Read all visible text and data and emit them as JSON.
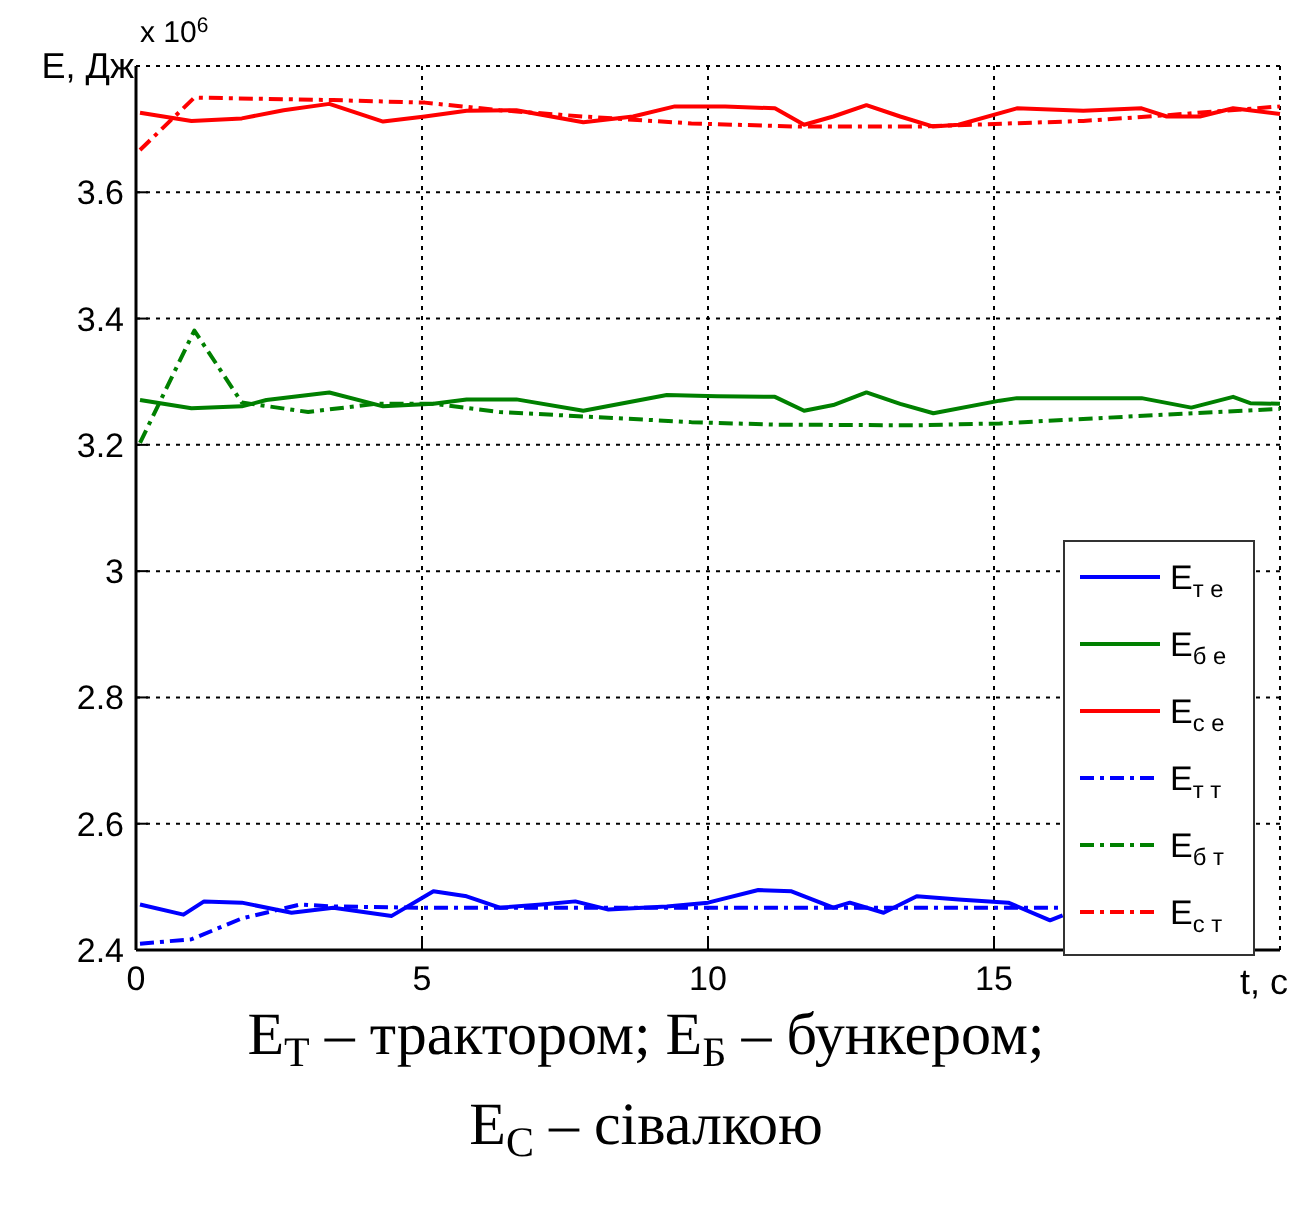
{
  "chart_data": {
    "type": "line",
    "xlabel": "t, c",
    "ylabel": "E, Дж",
    "annotations": [
      "x 10$^{6}$",
      "E$_{Т}$ – трактором;  E$_{Б}$ – бункером;",
      "E$_{С}$ – сівалкою"
    ],
    "xlim": [
      0,
      20
    ],
    "xticks": [
      0,
      5,
      10,
      15
    ],
    "ylim": [
      2.4,
      3.8
    ],
    "yticks": [
      2.4,
      2.6,
      2.8,
      3,
      3.2,
      3.4,
      3.6
    ],
    "grid": true,
    "legend": "right",
    "series": [
      {
        "name": "E$_{т е}$",
        "color": "#0000ff",
        "line_style": "solid",
        "x": [
          0.07,
          0.83,
          1.19,
          1.85,
          2.72,
          3.45,
          4.47,
          5.2,
          5.78,
          6.36,
          7.09,
          7.68,
          8.26,
          9.28,
          10.0,
          10.88,
          11.46,
          12.19,
          12.48,
          13.07,
          13.65,
          14.38,
          15.25,
          15.98,
          16.2
        ],
        "values": [
          2.472,
          2.456,
          2.477,
          2.475,
          2.459,
          2.467,
          2.454,
          2.493,
          2.485,
          2.467,
          2.472,
          2.477,
          2.464,
          2.469,
          2.475,
          2.495,
          2.493,
          2.467,
          2.475,
          2.459,
          2.485,
          2.48,
          2.475,
          2.447,
          2.455
        ]
      },
      {
        "name": "E$_{б е}$",
        "color": "#008000",
        "line_style": "solid",
        "x": [
          0.07,
          0.97,
          1.85,
          2.28,
          3.38,
          4.32,
          5.2,
          5.78,
          6.65,
          7.82,
          9.28,
          10.16,
          11.17,
          11.68,
          12.19,
          12.77,
          13.36,
          13.94,
          15.1,
          15.4,
          16.56,
          17.58,
          18.45,
          19.18,
          19.48,
          20
        ],
        "values": [
          3.271,
          3.258,
          3.261,
          3.271,
          3.283,
          3.261,
          3.265,
          3.272,
          3.272,
          3.254,
          3.279,
          3.277,
          3.276,
          3.254,
          3.263,
          3.283,
          3.265,
          3.25,
          3.27,
          3.274,
          3.274,
          3.274,
          3.259,
          3.276,
          3.266,
          3.265
        ]
      },
      {
        "name": "E$_{с е}$",
        "color": "#ff0000",
        "line_style": "solid",
        "x": [
          0.07,
          0.97,
          1.85,
          2.58,
          3.38,
          4.32,
          5.05,
          5.78,
          6.65,
          7.82,
          8.69,
          9.42,
          10.3,
          11.17,
          11.68,
          12.19,
          12.77,
          13.36,
          13.94,
          14.38,
          15.4,
          16.56,
          17.58,
          18.02,
          18.6,
          19.18,
          20
        ],
        "values": [
          3.726,
          3.713,
          3.717,
          3.73,
          3.74,
          3.712,
          3.72,
          3.729,
          3.73,
          3.711,
          3.72,
          3.736,
          3.736,
          3.733,
          3.707,
          3.72,
          3.738,
          3.72,
          3.704,
          3.707,
          3.733,
          3.729,
          3.733,
          3.72,
          3.72,
          3.733,
          3.724
        ]
      },
      {
        "name": "E$_{т т}$",
        "color": "#0000ff",
        "line_style": "dashdot",
        "x": [
          0.07,
          0.97,
          1.85,
          2.87,
          3.45,
          4.91,
          7.82,
          12.19,
          16.2
        ],
        "values": [
          2.41,
          2.417,
          2.45,
          2.472,
          2.469,
          2.467,
          2.467,
          2.467,
          2.467
        ]
      },
      {
        "name": "E$_{б т}$",
        "color": "#008000",
        "line_style": "dashdot",
        "x": [
          0.07,
          1.02,
          1.85,
          3.01,
          4.18,
          5.2,
          6.36,
          7.82,
          9.71,
          11.17,
          13.65,
          15.1,
          16.56,
          18.02,
          20
        ],
        "values": [
          3.203,
          3.381,
          3.267,
          3.252,
          3.265,
          3.265,
          3.252,
          3.245,
          3.236,
          3.232,
          3.231,
          3.234,
          3.241,
          3.248,
          3.257
        ]
      },
      {
        "name": "E$_{с т}$",
        "color": "#ff0000",
        "line_style": "dashdot",
        "x": [
          0.07,
          1.02,
          3.45,
          5.05,
          6.36,
          7.82,
          9.71,
          11.6,
          13.65,
          16.56,
          18.02,
          20
        ],
        "values": [
          3.667,
          3.75,
          3.746,
          3.742,
          3.73,
          3.72,
          3.709,
          3.704,
          3.704,
          3.713,
          3.722,
          3.736
        ]
      }
    ]
  }
}
